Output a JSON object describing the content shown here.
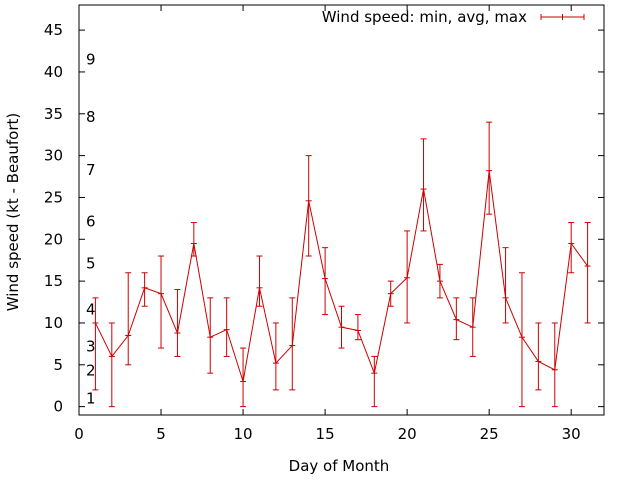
{
  "chart_data": {
    "type": "line",
    "title": "",
    "xlabel": "Day of Month",
    "ylabel": "Wind speed (kt - Beaufort)",
    "xlim": [
      0,
      32
    ],
    "ylim": [
      -1,
      48
    ],
    "grid": false,
    "legend_position": "top-right",
    "xticks": [
      0,
      5,
      10,
      15,
      20,
      25,
      30
    ],
    "yticks": [
      0,
      5,
      10,
      15,
      20,
      25,
      30,
      35,
      40,
      45
    ],
    "beaufort_labels": [
      {
        "label": "1",
        "y": 1
      },
      {
        "label": "2",
        "y": 4.3
      },
      {
        "label": "3",
        "y": 7.2
      },
      {
        "label": "4",
        "y": 11.6
      },
      {
        "label": "5",
        "y": 17.1
      },
      {
        "label": "6",
        "y": 22.1
      },
      {
        "label": "7",
        "y": 28.3
      },
      {
        "label": "8",
        "y": 34.6
      },
      {
        "label": "9",
        "y": 41.5
      }
    ],
    "series": [
      {
        "name": "Wind speed: min, avg, max",
        "color": "#cc0000",
        "x": [
          1,
          2,
          3,
          4,
          5,
          6,
          7,
          8,
          9,
          10,
          11,
          12,
          13,
          14,
          15,
          16,
          17,
          18,
          19,
          20,
          21,
          22,
          23,
          24,
          25,
          26,
          27,
          28,
          29,
          30,
          31
        ],
        "avg": [
          10,
          6,
          8.5,
          14.2,
          13.5,
          8.8,
          19.5,
          8.3,
          9.2,
          3,
          14.2,
          5.2,
          7.3,
          24.6,
          15.3,
          9.5,
          9.1,
          4,
          13.5,
          15.4,
          26,
          15,
          10.4,
          9.5,
          28.2,
          13,
          8.3,
          5.4,
          4.4,
          19.5,
          16.8
        ],
        "min": [
          2,
          0,
          5,
          12,
          7,
          6,
          18,
          4,
          6,
          0,
          12,
          2,
          2,
          18,
          11,
          7,
          8,
          0,
          12,
          10,
          21,
          13,
          8,
          6,
          23,
          10,
          0,
          2,
          0,
          16,
          10
        ],
        "max": [
          13,
          10,
          16,
          16,
          18,
          14,
          22,
          13,
          13,
          7,
          18,
          10,
          13,
          30,
          19,
          12,
          11,
          6,
          15,
          21,
          32,
          17,
          13,
          13,
          34,
          19,
          16,
          10,
          10,
          22,
          22
        ]
      }
    ]
  }
}
